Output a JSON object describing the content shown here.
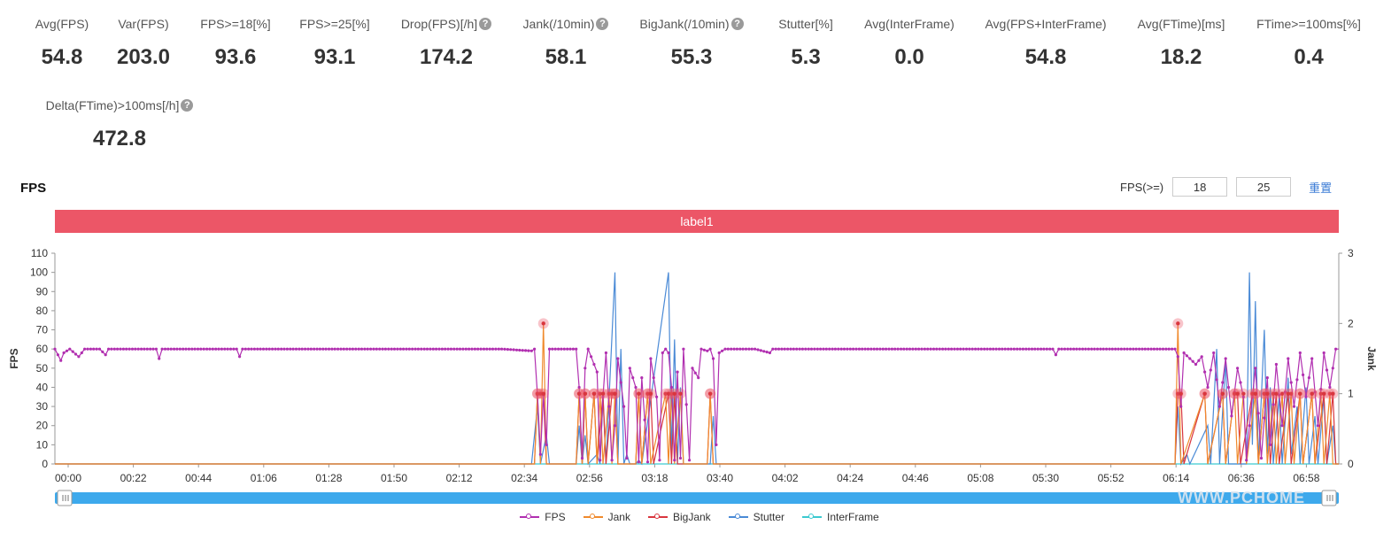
{
  "stats": [
    {
      "label": "Avg(FPS)",
      "value": "54.8",
      "help": false
    },
    {
      "label": "Var(FPS)",
      "value": "203.0",
      "help": false
    },
    {
      "label": "FPS>=18[%]",
      "value": "93.6",
      "help": false
    },
    {
      "label": "FPS>=25[%]",
      "value": "93.1",
      "help": false
    },
    {
      "label": "Drop(FPS)[/h]",
      "value": "174.2",
      "help": true
    },
    {
      "label": "Jank(/10min)",
      "value": "58.1",
      "help": true
    },
    {
      "label": "BigJank(/10min)",
      "value": "55.3",
      "help": true
    },
    {
      "label": "Stutter[%]",
      "value": "5.3",
      "help": false
    },
    {
      "label": "Avg(InterFrame)",
      "value": "0.0",
      "help": false
    },
    {
      "label": "Avg(FPS+InterFrame)",
      "value": "54.8",
      "help": false
    },
    {
      "label": "Avg(FTime)[ms]",
      "value": "18.2",
      "help": false
    },
    {
      "label": "FTime>=100ms[%]",
      "value": "0.4",
      "help": false
    },
    {
      "label": "Delta(FTime)>100ms[/h]",
      "value": "472.8",
      "help": true
    }
  ],
  "help_glyph": "?",
  "section_title": "FPS",
  "fps_filter": {
    "label": "FPS(>=)",
    "low": "18",
    "high": "25",
    "reset": "重置"
  },
  "label_bar": "label1",
  "watermark": "WWW.PCHOME",
  "colors": {
    "fps": "#b12fb0",
    "jank": "#f08a2c",
    "bigjank": "#d9363e",
    "stutter": "#4a8ad6",
    "interframe": "#3cc9d0",
    "label_bar": "#ec5667",
    "slider": "#3da9ec"
  },
  "chart_data": {
    "type": "line",
    "xlabel": "",
    "ylabel": "FPS",
    "y2label": "Jank",
    "ylim": [
      0,
      110
    ],
    "y2lim": [
      0,
      3
    ],
    "yticks": [
      0,
      10,
      20,
      30,
      40,
      50,
      60,
      70,
      80,
      90,
      100,
      110
    ],
    "y2ticks": [
      0,
      1,
      2,
      3
    ],
    "x_ticks": [
      "00:00",
      "00:22",
      "00:44",
      "01:06",
      "01:28",
      "01:50",
      "02:12",
      "02:34",
      "02:56",
      "03:18",
      "03:40",
      "04:02",
      "04:24",
      "04:46",
      "05:08",
      "05:30",
      "05:52",
      "06:14",
      "06:36",
      "06:58"
    ],
    "x_range_seconds": [
      0,
      431
    ],
    "legend": [
      "FPS",
      "Jank",
      "BigJank",
      "Stutter",
      "InterFrame"
    ],
    "series": [
      {
        "name": "FPS",
        "axis": "left",
        "description_points": [
          [
            0,
            60
          ],
          [
            1,
            57
          ],
          [
            2,
            54
          ],
          [
            3,
            58
          ],
          [
            5,
            60
          ],
          [
            8,
            56
          ],
          [
            10,
            60
          ],
          [
            15,
            60
          ],
          [
            17,
            57
          ],
          [
            18,
            60
          ],
          [
            34,
            60
          ],
          [
            35,
            55
          ],
          [
            36,
            60
          ],
          [
            61,
            60
          ],
          [
            62,
            56
          ],
          [
            63,
            60
          ],
          [
            150,
            60
          ],
          [
            160,
            59
          ],
          [
            161,
            60
          ],
          [
            162,
            36
          ],
          [
            163,
            5
          ],
          [
            164,
            36
          ],
          [
            165,
            10
          ],
          [
            166,
            60
          ],
          [
            175,
            60
          ],
          [
            176,
            40
          ],
          [
            177,
            3
          ],
          [
            178,
            50
          ],
          [
            179,
            60
          ],
          [
            182,
            48
          ],
          [
            183,
            2
          ],
          [
            184,
            35
          ],
          [
            185,
            58
          ],
          [
            187,
            2
          ],
          [
            188,
            20
          ],
          [
            189,
            55
          ],
          [
            191,
            30
          ],
          [
            192,
            3
          ],
          [
            193,
            50
          ],
          [
            195,
            40
          ],
          [
            196,
            1
          ],
          [
            197,
            45
          ],
          [
            199,
            1
          ],
          [
            200,
            55
          ],
          [
            202,
            35
          ],
          [
            203,
            2
          ],
          [
            204,
            58
          ],
          [
            205,
            60
          ],
          [
            206,
            58
          ],
          [
            207,
            40
          ],
          [
            208,
            2
          ],
          [
            209,
            48
          ],
          [
            210,
            3
          ],
          [
            211,
            60
          ],
          [
            213,
            2
          ],
          [
            214,
            50
          ],
          [
            216,
            45
          ],
          [
            217,
            60
          ],
          [
            219,
            59
          ],
          [
            220,
            60
          ],
          [
            221,
            55
          ],
          [
            222,
            10
          ],
          [
            223,
            58
          ],
          [
            225,
            60
          ],
          [
            235,
            60
          ],
          [
            240,
            58
          ],
          [
            241,
            60
          ],
          [
            280,
            60
          ],
          [
            283,
            60
          ],
          [
            335,
            60
          ],
          [
            336,
            57
          ],
          [
            337,
            60
          ],
          [
            376,
            60
          ],
          [
            377,
            56
          ],
          [
            378,
            30
          ],
          [
            379,
            58
          ],
          [
            381,
            55
          ],
          [
            383,
            52
          ],
          [
            385,
            56
          ],
          [
            387,
            40
          ],
          [
            389,
            58
          ],
          [
            391,
            30
          ],
          [
            393,
            55
          ],
          [
            395,
            25
          ],
          [
            397,
            50
          ],
          [
            399,
            35
          ],
          [
            400,
            2
          ],
          [
            401,
            20
          ],
          [
            403,
            50
          ],
          [
            405,
            3
          ],
          [
            407,
            45
          ],
          [
            408,
            10
          ],
          [
            410,
            52
          ],
          [
            412,
            20
          ],
          [
            414,
            55
          ],
          [
            416,
            30
          ],
          [
            418,
            58
          ],
          [
            420,
            35
          ],
          [
            422,
            55
          ],
          [
            424,
            20
          ],
          [
            426,
            58
          ],
          [
            428,
            40
          ],
          [
            430,
            60
          ],
          [
            431,
            60
          ]
        ]
      },
      {
        "name": "Jank",
        "axis": "right",
        "points": [
          [
            0,
            0
          ],
          [
            161,
            0
          ],
          [
            162,
            1
          ],
          [
            163,
            0
          ],
          [
            164,
            2
          ],
          [
            165,
            0
          ],
          [
            175,
            0
          ],
          [
            176,
            1
          ],
          [
            177,
            0
          ],
          [
            178,
            1
          ],
          [
            179,
            0
          ],
          [
            181,
            1
          ],
          [
            182,
            0
          ],
          [
            183,
            1
          ],
          [
            184,
            0
          ],
          [
            186,
            1
          ],
          [
            187,
            0
          ],
          [
            188,
            1
          ],
          [
            189,
            0
          ],
          [
            195,
            0
          ],
          [
            196,
            1
          ],
          [
            197,
            0
          ],
          [
            199,
            1
          ],
          [
            200,
            0
          ],
          [
            205,
            1
          ],
          [
            206,
            0
          ],
          [
            207,
            1
          ],
          [
            208,
            0
          ],
          [
            210,
            1
          ],
          [
            211,
            0
          ],
          [
            219,
            0
          ],
          [
            220,
            1
          ],
          [
            221,
            0
          ],
          [
            376,
            0
          ],
          [
            377,
            2
          ],
          [
            378,
            0
          ],
          [
            386,
            1
          ],
          [
            387,
            0
          ],
          [
            392,
            1
          ],
          [
            393,
            0
          ],
          [
            396,
            1
          ],
          [
            397,
            0
          ],
          [
            399,
            1
          ],
          [
            400,
            0
          ],
          [
            403,
            1
          ],
          [
            404,
            0
          ],
          [
            406,
            1
          ],
          [
            407,
            0
          ],
          [
            409,
            1
          ],
          [
            410,
            0
          ],
          [
            412,
            1
          ],
          [
            413,
            0
          ],
          [
            415,
            1
          ],
          [
            416,
            0
          ],
          [
            418,
            1
          ],
          [
            419,
            0
          ],
          [
            422,
            1
          ],
          [
            423,
            0
          ],
          [
            425,
            1
          ],
          [
            426,
            0
          ],
          [
            428,
            1
          ],
          [
            429,
            0
          ],
          [
            431,
            0
          ]
        ]
      },
      {
        "name": "BigJank",
        "axis": "right",
        "points": [
          [
            0,
            0
          ],
          [
            161,
            0
          ],
          [
            162,
            1
          ],
          [
            163,
            1
          ],
          [
            164,
            1
          ],
          [
            165,
            0
          ],
          [
            175,
            0
          ],
          [
            176,
            1
          ],
          [
            177,
            0
          ],
          [
            178,
            1
          ],
          [
            179,
            0
          ],
          [
            181,
            1
          ],
          [
            182,
            0
          ],
          [
            184,
            1
          ],
          [
            185,
            0
          ],
          [
            187,
            1
          ],
          [
            188,
            1
          ],
          [
            189,
            0
          ],
          [
            195,
            0
          ],
          [
            196,
            1
          ],
          [
            197,
            0
          ],
          [
            199,
            1
          ],
          [
            200,
            1
          ],
          [
            201,
            0
          ],
          [
            206,
            1
          ],
          [
            207,
            0
          ],
          [
            208,
            1
          ],
          [
            209,
            0
          ],
          [
            219,
            0
          ],
          [
            220,
            1
          ],
          [
            221,
            0
          ],
          [
            376,
            0
          ],
          [
            377,
            1
          ],
          [
            378,
            1
          ],
          [
            379,
            0
          ],
          [
            386,
            1
          ],
          [
            387,
            0
          ],
          [
            392,
            1
          ],
          [
            393,
            0
          ],
          [
            396,
            1
          ],
          [
            397,
            1
          ],
          [
            398,
            0
          ],
          [
            402,
            1
          ],
          [
            403,
            1
          ],
          [
            404,
            0
          ],
          [
            406,
            1
          ],
          [
            407,
            1
          ],
          [
            408,
            0
          ],
          [
            410,
            1
          ],
          [
            411,
            0
          ],
          [
            414,
            1
          ],
          [
            415,
            0
          ],
          [
            418,
            1
          ],
          [
            419,
            0
          ],
          [
            422,
            1
          ],
          [
            423,
            0
          ],
          [
            426,
            1
          ],
          [
            427,
            0
          ],
          [
            429,
            1
          ],
          [
            430,
            0
          ],
          [
            431,
            0
          ]
        ]
      },
      {
        "name": "Stutter",
        "axis": "left",
        "points": [
          [
            0,
            0
          ],
          [
            160,
            0
          ],
          [
            162,
            30
          ],
          [
            163,
            0
          ],
          [
            165,
            15
          ],
          [
            166,
            0
          ],
          [
            175,
            0
          ],
          [
            176,
            20
          ],
          [
            177,
            0
          ],
          [
            178,
            15
          ],
          [
            179,
            0
          ],
          [
            182,
            5
          ],
          [
            183,
            0
          ],
          [
            184,
            35
          ],
          [
            185,
            0
          ],
          [
            188,
            100
          ],
          [
            189,
            0
          ],
          [
            190,
            60
          ],
          [
            191,
            0
          ],
          [
            192,
            5
          ],
          [
            193,
            0
          ],
          [
            195,
            0
          ],
          [
            196,
            2
          ],
          [
            197,
            0
          ],
          [
            206,
            100
          ],
          [
            207,
            5
          ],
          [
            208,
            65
          ],
          [
            209,
            0
          ],
          [
            210,
            40
          ],
          [
            211,
            0
          ],
          [
            220,
            0
          ],
          [
            221,
            25
          ],
          [
            222,
            0
          ],
          [
            376,
            0
          ],
          [
            377,
            30
          ],
          [
            378,
            0
          ],
          [
            380,
            5
          ],
          [
            381,
            0
          ],
          [
            387,
            20
          ],
          [
            388,
            0
          ],
          [
            390,
            60
          ],
          [
            391,
            0
          ],
          [
            393,
            55
          ],
          [
            394,
            0
          ],
          [
            400,
            0
          ],
          [
            401,
            100
          ],
          [
            402,
            10
          ],
          [
            403,
            85
          ],
          [
            404,
            0
          ],
          [
            406,
            70
          ],
          [
            407,
            5
          ],
          [
            408,
            40
          ],
          [
            409,
            0
          ],
          [
            411,
            35
          ],
          [
            412,
            0
          ],
          [
            414,
            45
          ],
          [
            415,
            5
          ],
          [
            417,
            30
          ],
          [
            418,
            0
          ],
          [
            420,
            40
          ],
          [
            421,
            0
          ],
          [
            423,
            25
          ],
          [
            424,
            0
          ],
          [
            426,
            35
          ],
          [
            427,
            0
          ],
          [
            429,
            20
          ],
          [
            430,
            0
          ],
          [
            431,
            0
          ]
        ]
      },
      {
        "name": "InterFrame",
        "axis": "left",
        "points": [
          [
            0,
            0
          ],
          [
            431,
            0
          ]
        ]
      }
    ]
  }
}
